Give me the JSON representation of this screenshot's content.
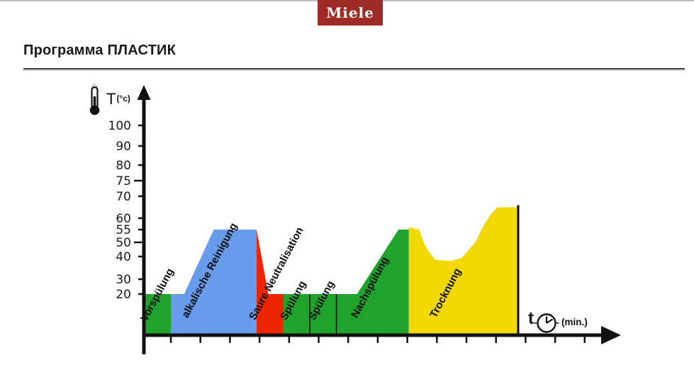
{
  "brand": {
    "name": "Miele",
    "bg_color": "#9e2b26",
    "text_color": "#ffffff"
  },
  "header": {
    "title": "Программа ПЛАСТИК"
  },
  "chart_data": {
    "type": "area",
    "title": "Программа ПЛАСТИК",
    "ylabel": "T",
    "ylabel_unit": "(°c)",
    "xlabel": "t",
    "xlabel_unit": "(min.)",
    "y_ticks": [
      100,
      90,
      80,
      75,
      70,
      60,
      55,
      50,
      40,
      30,
      20
    ],
    "y_ticks_long": [
      75,
      50
    ],
    "x_tick_count": 15,
    "baseline_temp": 20,
    "axis_color": "#111111",
    "phases": [
      {
        "name": "Vorspülung",
        "color": "#1fa32c",
        "profile": [
          [
            0,
            20
          ],
          [
            0.9,
            20
          ]
        ]
      },
      {
        "name": "alkalische Reinigung",
        "color": "#699bec",
        "profile": [
          [
            0.9,
            20
          ],
          [
            1.35,
            20
          ],
          [
            2.35,
            55
          ],
          [
            3.8,
            55
          ]
        ]
      },
      {
        "name": "Saure Neutralisation",
        "color": "#ee2600",
        "profile": [
          [
            3.8,
            55
          ],
          [
            4.2,
            20
          ],
          [
            4.7,
            20
          ]
        ]
      },
      {
        "name": "Spülung",
        "color": "#1fa32c",
        "profile": [
          [
            4.7,
            20
          ],
          [
            5.6,
            20
          ]
        ]
      },
      {
        "name": "Spülung",
        "color": "#1fa32c",
        "profile": [
          [
            5.6,
            20
          ],
          [
            6.5,
            20
          ]
        ]
      },
      {
        "name": "Nachspülung",
        "color": "#1fa32c",
        "profile": [
          [
            6.5,
            20
          ],
          [
            7.2,
            20
          ],
          [
            8.6,
            55
          ],
          [
            8.95,
            55
          ]
        ]
      },
      {
        "name": "Trocknung",
        "color": "#f0d800",
        "profile": [
          [
            8.95,
            56
          ],
          [
            9.3,
            55
          ],
          [
            9.45,
            50
          ],
          [
            9.6,
            44
          ],
          [
            9.85,
            38.5
          ],
          [
            10.4,
            38
          ],
          [
            10.75,
            39.5
          ],
          [
            11.2,
            50
          ],
          [
            11.45,
            56
          ],
          [
            11.7,
            61.5
          ],
          [
            11.95,
            65
          ],
          [
            12.65,
            65
          ]
        ]
      }
    ],
    "phase_dividers_t": [
      5.6,
      6.5
    ],
    "end_marker_t": 12.65,
    "end_marker_top_temp": 65
  },
  "icons": {
    "thermometer": "thermometer-icon",
    "clock": "clock-icon",
    "y_arrow": "up-arrow-icon",
    "x_arrow": "right-arrow-icon"
  }
}
